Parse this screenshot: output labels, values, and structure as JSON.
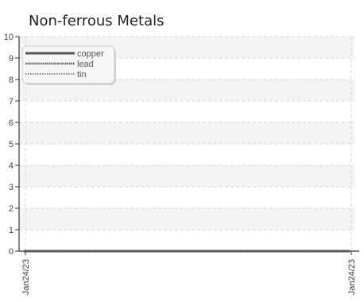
{
  "chart_data": {
    "type": "line",
    "title": "Non-ferrous Metals",
    "xlabel": "",
    "ylabel": "",
    "x": [
      "Jan24/23",
      "Jan24/23"
    ],
    "ylim": [
      0,
      10
    ],
    "yticks": [
      0,
      1,
      2,
      3,
      4,
      5,
      6,
      7,
      8,
      9,
      10
    ],
    "grid": true,
    "legend_position": "top-left",
    "series": [
      {
        "name": "copper",
        "values": [
          0,
          0
        ],
        "style": "solid",
        "color": "#555555"
      },
      {
        "name": "lead",
        "values": [
          0,
          0
        ],
        "style": "dotted-thick",
        "color": "#555555"
      },
      {
        "name": "tin",
        "values": [
          0,
          0
        ],
        "style": "dotted",
        "color": "#666666"
      }
    ]
  }
}
